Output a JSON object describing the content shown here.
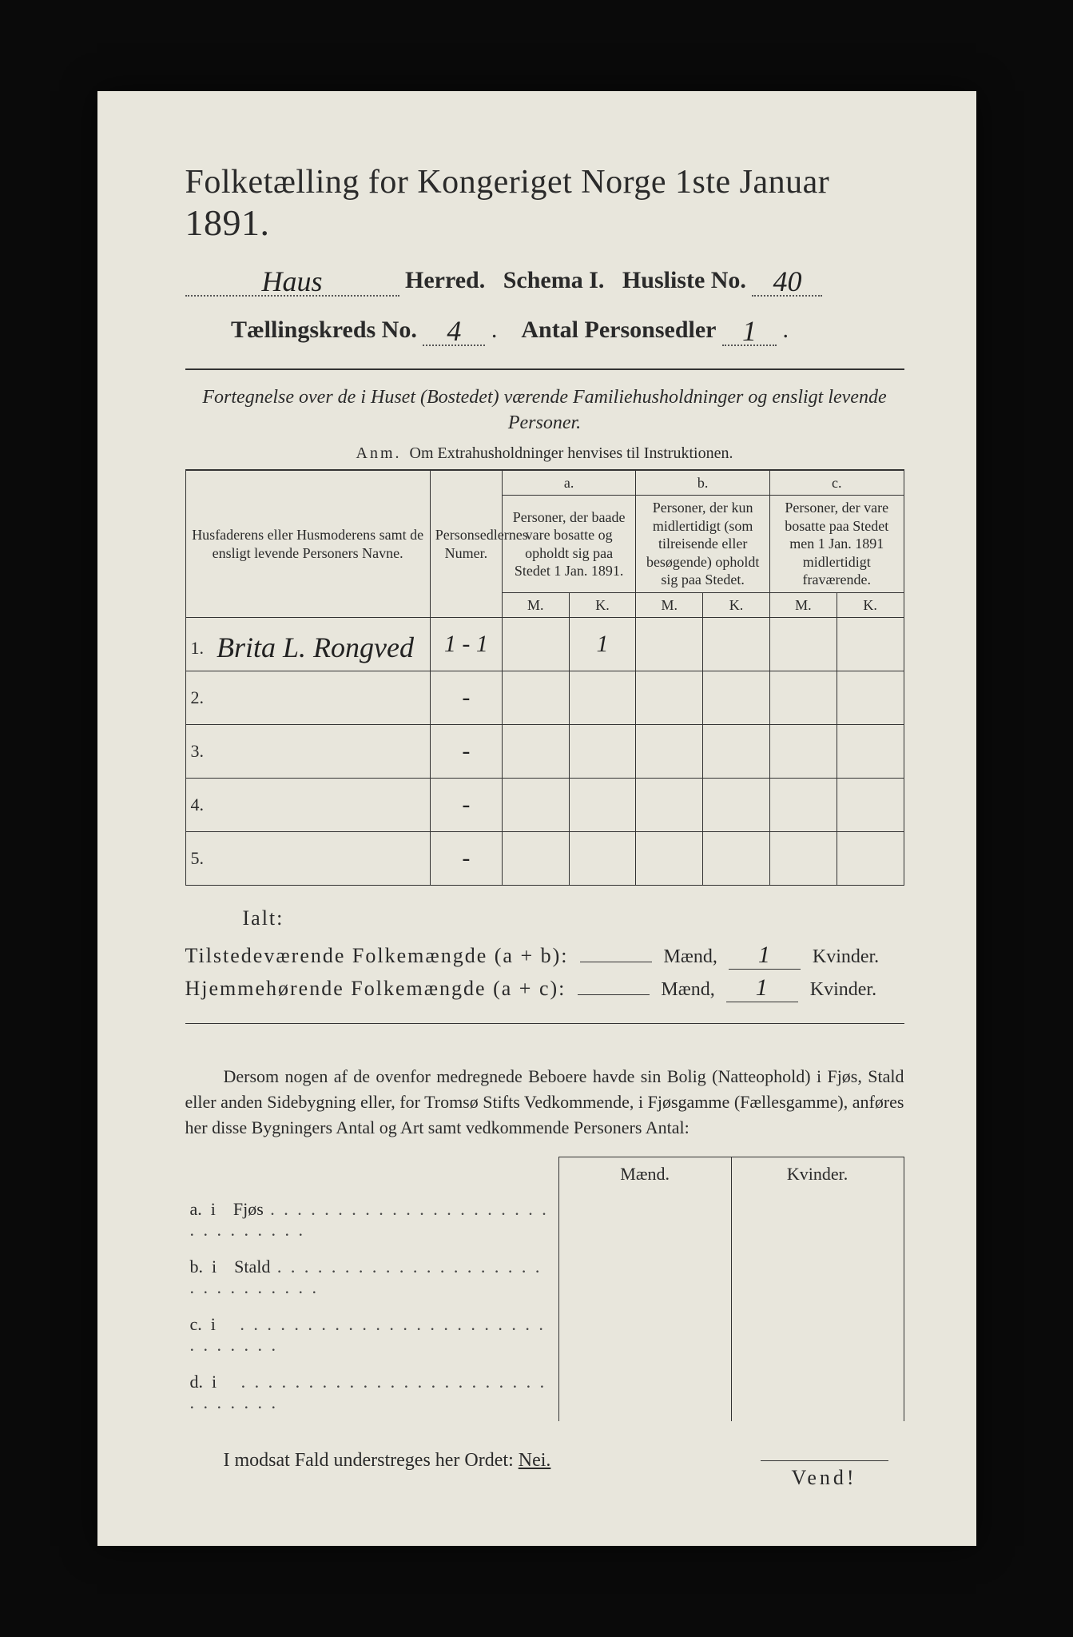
{
  "background_color": "#0a0a0a",
  "paper_color": "#e8e6dc",
  "text_color": "#2a2a2a",
  "title": {
    "main": "Folketælling for Kongeriget Norge 1ste Januar",
    "year": "1891."
  },
  "header_fields": {
    "herred_value": "Haus",
    "herred_label": "Herred.",
    "schema_label": "Schema I.",
    "husliste_label": "Husliste No.",
    "husliste_value": "40",
    "kreds_label": "Tællingskreds No.",
    "kreds_value": "4",
    "personsedler_label": "Antal Personsedler",
    "personsedler_value": "1"
  },
  "subheading": "Fortegnelse over de i Huset (Bostedet) værende Familiehusholdninger og ensligt levende Personer.",
  "anm_line": {
    "prefix": "Anm.",
    "text": "Om Extrahusholdninger henvises til Instruktionen."
  },
  "table": {
    "col_name_header": "Husfaderens eller Husmoderens samt de ensligt levende Personers Navne.",
    "col_num_header": "Personsedlernes Numer.",
    "group_a": {
      "letter": "a.",
      "text": "Personer, der baade vare bosatte og opholdt sig paa Stedet 1 Jan. 1891."
    },
    "group_b": {
      "letter": "b.",
      "text": "Personer, der kun midlertidigt (som tilreisende eller besøgende) opholdt sig paa Stedet."
    },
    "group_c": {
      "letter": "c.",
      "text": "Personer, der vare bosatte paa Stedet men 1 Jan. 1891 midlertidigt fraværende."
    },
    "mk_m": "M.",
    "mk_k": "K.",
    "rows": [
      {
        "n": "1.",
        "name": "Brita L. Rongved",
        "num": "1 - 1",
        "a_m": "",
        "a_k": "1",
        "b_m": "",
        "b_k": "",
        "c_m": "",
        "c_k": ""
      },
      {
        "n": "2.",
        "name": "",
        "num": "-",
        "a_m": "",
        "a_k": "",
        "b_m": "",
        "b_k": "",
        "c_m": "",
        "c_k": ""
      },
      {
        "n": "3.",
        "name": "",
        "num": "-",
        "a_m": "",
        "a_k": "",
        "b_m": "",
        "b_k": "",
        "c_m": "",
        "c_k": ""
      },
      {
        "n": "4.",
        "name": "",
        "num": "-",
        "a_m": "",
        "a_k": "",
        "b_m": "",
        "b_k": "",
        "c_m": "",
        "c_k": ""
      },
      {
        "n": "5.",
        "name": "",
        "num": "-",
        "a_m": "",
        "a_k": "",
        "b_m": "",
        "b_k": "",
        "c_m": "",
        "c_k": ""
      }
    ]
  },
  "ialt_label": "Ialt:",
  "sum_lines": {
    "tilstede_label": "Tilstedeværende Folkemængde (a + b):",
    "hjemme_label": "Hjemmehørende Folkemængde (a + c):",
    "maend_label": "Mænd,",
    "kvinder_label": "Kvinder.",
    "tilstede_m": "",
    "tilstede_k": "1",
    "hjemme_m": "",
    "hjemme_k": "1"
  },
  "paragraph": "Dersom nogen af de ovenfor medregnede Beboere havde sin Bolig (Natteophold) i Fjøs, Stald eller anden Sidebygning eller, for Tromsø Stifts Vedkommende, i Fjøsgamme (Fællesgamme), anføres her disse Bygningers Antal og Art samt vedkommende Personers Antal:",
  "side_table": {
    "head_m": "Mænd.",
    "head_k": "Kvinder.",
    "rows": [
      {
        "letter": "a.",
        "i": "i",
        "label": "Fjøs"
      },
      {
        "letter": "b.",
        "i": "i",
        "label": "Stald"
      },
      {
        "letter": "c.",
        "i": "i",
        "label": ""
      },
      {
        "letter": "d.",
        "i": "i",
        "label": ""
      }
    ]
  },
  "nei_line": {
    "prefix": "I modsat Fald understreges her Ordet:",
    "word": "Nei."
  },
  "vend": "Vend!"
}
